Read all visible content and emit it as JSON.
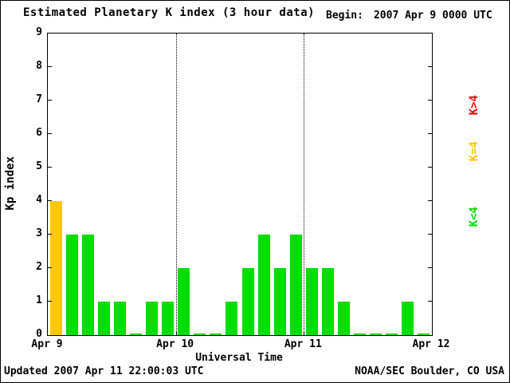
{
  "title": "Estimated Planetary K index (3 hour data)",
  "begin": {
    "label": "Begin:",
    "value": "2007 Apr 9 0000 UTC"
  },
  "axes": {
    "ylabel": "Kp index",
    "xlabel": "Universal Time"
  },
  "footer": {
    "updated": "Updated 2007 Apr 11 22:00:03 UTC",
    "source": "NOAA/SEC Boulder, CO USA"
  },
  "legend": [
    {
      "label": "K>4",
      "color": "#ff0000"
    },
    {
      "label": "K=4",
      "color": "#ffc800"
    },
    {
      "label": "K<4",
      "color": "#00dd00"
    }
  ],
  "chart_data": {
    "type": "bar",
    "title": "Estimated Planetary K index (3 hour data)",
    "begin": "2007 Apr 9 0000 UTC",
    "xlabel": "Universal Time",
    "ylabel": "Kp index",
    "ylim": [
      0,
      9
    ],
    "y_ticks": [
      0,
      1,
      2,
      3,
      4,
      5,
      6,
      7,
      8,
      9
    ],
    "x_tick_labels": [
      "Apr 9",
      "Apr 10",
      "Apr 11",
      "Apr 12"
    ],
    "hours_per_bar": 3,
    "grid": "dotted vertical lines at day boundaries",
    "legend_position": "right, rotated",
    "series": [
      {
        "day": "Apr 9",
        "values": [
          4,
          3,
          3,
          1,
          1,
          0,
          1,
          1
        ]
      },
      {
        "day": "Apr 10",
        "values": [
          2,
          0,
          0,
          1,
          2,
          3,
          2,
          3
        ]
      },
      {
        "day": "Apr 11",
        "values": [
          2,
          2,
          1,
          0,
          0,
          0,
          1,
          0
        ]
      }
    ],
    "colors": {
      "below4": "#00dd00",
      "equal4": "#ffc800",
      "above4": "#ff0000"
    }
  }
}
